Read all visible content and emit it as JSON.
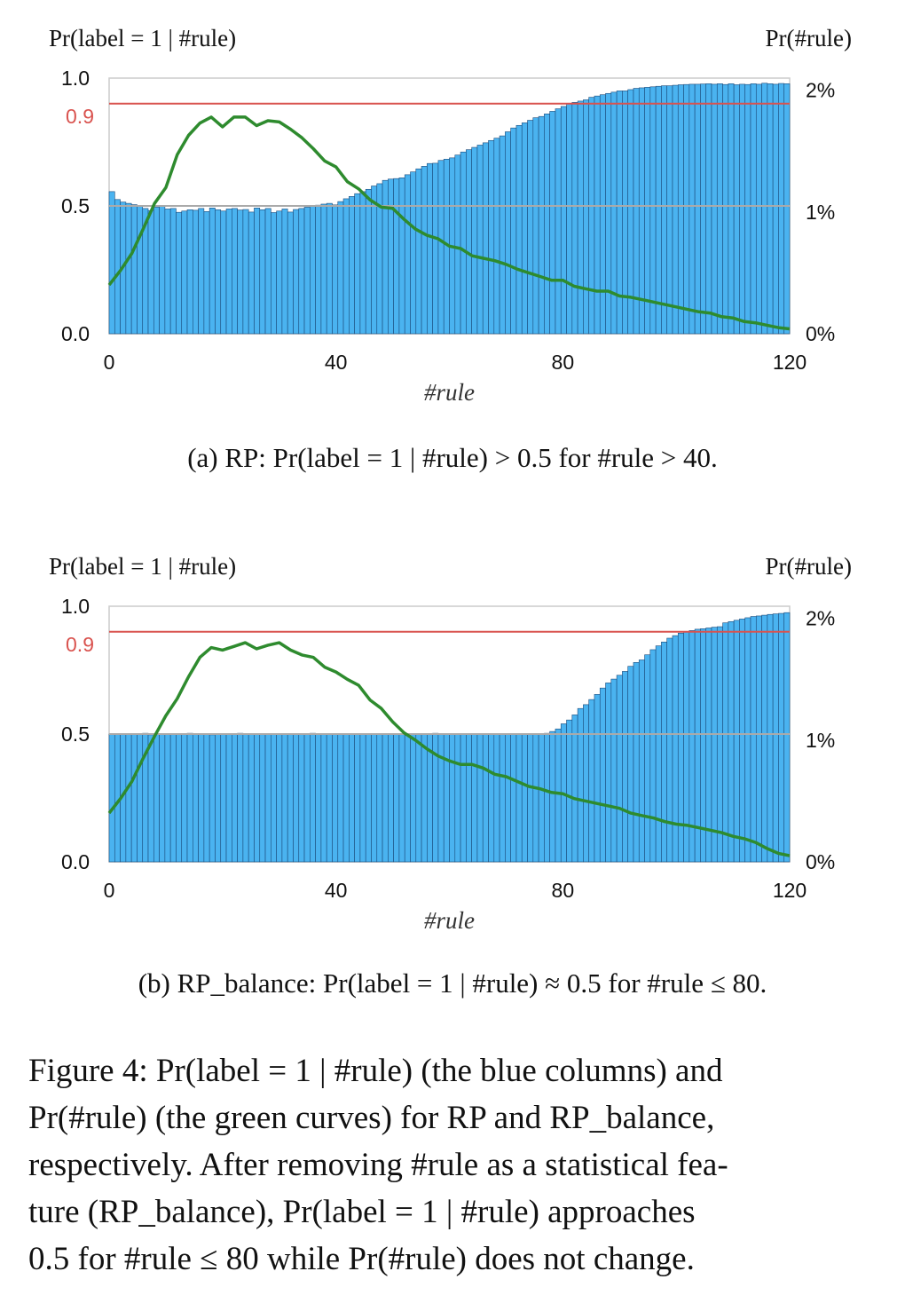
{
  "chart_data": [
    {
      "type": "bar",
      "panel": "a",
      "left_axis_label": "Pr(label = 1 | #rule)",
      "right_axis_label": "Pr(#rule)",
      "xlabel": "#rule",
      "xlim": [
        0,
        120
      ],
      "x_ticks": [
        "0",
        "40",
        "80",
        "120"
      ],
      "y_left_ticks": [
        "0.0",
        "0.5",
        "1.0"
      ],
      "y_left_ref_tick": "0.9",
      "y_right_ticks": [
        "0%",
        "1%",
        "2%"
      ],
      "ylim_left": [
        0,
        1.0
      ],
      "ylim_right": [
        0,
        2.1
      ],
      "reference_lines": [
        {
          "y": 0.9,
          "color": "#d9534f"
        },
        {
          "y": 0.5,
          "color": "#aaaaaa"
        }
      ],
      "bar_color": "#4ab3f0",
      "line_color": "#2e8b2e",
      "bars_label": "Pr(label = 1 | #rule)",
      "curve_label": "Pr(#rule)",
      "bar_values": [
        0.556,
        0.525,
        0.515,
        0.51,
        0.505,
        0.5,
        0.49,
        0.482,
        0.495,
        0.498,
        0.488,
        0.49,
        0.475,
        0.48,
        0.485,
        0.483,
        0.49,
        0.478,
        0.492,
        0.485,
        0.48,
        0.488,
        0.49,
        0.484,
        0.486,
        0.476,
        0.492,
        0.485,
        0.49,
        0.474,
        0.48,
        0.488,
        0.476,
        0.486,
        0.49,
        0.495,
        0.5,
        0.503,
        0.507,
        0.51,
        0.504,
        0.517,
        0.528,
        0.537,
        0.548,
        0.556,
        0.565,
        0.578,
        0.587,
        0.6,
        0.605,
        0.607,
        0.61,
        0.622,
        0.633,
        0.645,
        0.655,
        0.666,
        0.667,
        0.678,
        0.683,
        0.688,
        0.699,
        0.711,
        0.72,
        0.729,
        0.738,
        0.747,
        0.756,
        0.765,
        0.774,
        0.79,
        0.805,
        0.815,
        0.825,
        0.835,
        0.845,
        0.85,
        0.86,
        0.87,
        0.88,
        0.889,
        0.9,
        0.905,
        0.91,
        0.915,
        0.925,
        0.93,
        0.935,
        0.94,
        0.945,
        0.95,
        0.95,
        0.955,
        0.96,
        0.962,
        0.964,
        0.966,
        0.968,
        0.97,
        0.97,
        0.972,
        0.974,
        0.975,
        0.976,
        0.976,
        0.977,
        0.978,
        0.976,
        0.978,
        0.975,
        0.978,
        0.974,
        0.976,
        0.975,
        0.978,
        0.976,
        0.98,
        0.978,
        0.976,
        0.979,
        0.978
      ],
      "curve_x": [
        0,
        2,
        4,
        6,
        8,
        10,
        12,
        14,
        16,
        18,
        20,
        22,
        24,
        26,
        28,
        30,
        32,
        34,
        36,
        38,
        40,
        42,
        44,
        46,
        48,
        50,
        52,
        54,
        56,
        58,
        60,
        62,
        64,
        66,
        68,
        70,
        72,
        74,
        76,
        78,
        80,
        82,
        84,
        86,
        88,
        90,
        92,
        94,
        96,
        98,
        100,
        102,
        104,
        106,
        108,
        110,
        112,
        114,
        116,
        118,
        120
      ],
      "curve_values": [
        0.4,
        0.52,
        0.66,
        0.86,
        1.07,
        1.2,
        1.47,
        1.63,
        1.73,
        1.78,
        1.7,
        1.78,
        1.78,
        1.71,
        1.75,
        1.74,
        1.68,
        1.61,
        1.52,
        1.42,
        1.37,
        1.25,
        1.19,
        1.1,
        1.04,
        1.03,
        0.94,
        0.86,
        0.81,
        0.78,
        0.72,
        0.7,
        0.64,
        0.62,
        0.6,
        0.57,
        0.53,
        0.5,
        0.47,
        0.44,
        0.44,
        0.39,
        0.37,
        0.35,
        0.35,
        0.31,
        0.3,
        0.28,
        0.26,
        0.24,
        0.22,
        0.2,
        0.18,
        0.17,
        0.14,
        0.13,
        0.1,
        0.09,
        0.07,
        0.05,
        0.04
      ],
      "caption": "(a) RP: Pr(label = 1 | #rule) > 0.5 for #rule > 40."
    },
    {
      "type": "bar",
      "panel": "b",
      "left_axis_label": "Pr(label = 1 | #rule)",
      "right_axis_label": "Pr(#rule)",
      "xlabel": "#rule",
      "xlim": [
        0,
        120
      ],
      "x_ticks": [
        "0",
        "40",
        "80",
        "120"
      ],
      "y_left_ticks": [
        "0.0",
        "0.5",
        "1.0"
      ],
      "y_left_ref_tick": "0.9",
      "y_right_ticks": [
        "0%",
        "1%",
        "2%"
      ],
      "ylim_left": [
        0,
        1.0
      ],
      "ylim_right": [
        0,
        2.1
      ],
      "reference_lines": [
        {
          "y": 0.9,
          "color": "#d9534f"
        },
        {
          "y": 0.5,
          "color": "#aaaaaa"
        }
      ],
      "bar_color": "#4ab3f0",
      "line_color": "#2e8b2e",
      "bars_label": "Pr(label = 1 | #rule)",
      "curve_label": "Pr(#rule)",
      "bar_values": [
        0.5,
        0.502,
        0.498,
        0.501,
        0.499,
        0.5,
        0.503,
        0.497,
        0.5,
        0.502,
        0.499,
        0.501,
        0.498,
        0.5,
        0.503,
        0.499,
        0.501,
        0.5,
        0.497,
        0.502,
        0.5,
        0.499,
        0.501,
        0.503,
        0.498,
        0.5,
        0.502,
        0.499,
        0.501,
        0.5,
        0.498,
        0.502,
        0.5,
        0.499,
        0.501,
        0.5,
        0.503,
        0.498,
        0.5,
        0.501,
        0.499,
        0.502,
        0.5,
        0.498,
        0.501,
        0.5,
        0.499,
        0.502,
        0.5,
        0.501,
        0.498,
        0.5,
        0.502,
        0.499,
        0.5,
        0.501,
        0.498,
        0.5,
        0.503,
        0.5,
        0.499,
        0.501,
        0.5,
        0.498,
        0.502,
        0.5,
        0.499,
        0.501,
        0.5,
        0.498,
        0.502,
        0.5,
        0.499,
        0.501,
        0.5,
        0.498,
        0.502,
        0.5,
        0.503,
        0.51,
        0.52,
        0.54,
        0.555,
        0.575,
        0.6,
        0.615,
        0.635,
        0.655,
        0.68,
        0.7,
        0.715,
        0.73,
        0.745,
        0.765,
        0.78,
        0.79,
        0.81,
        0.83,
        0.845,
        0.86,
        0.875,
        0.885,
        0.895,
        0.9,
        0.905,
        0.91,
        0.912,
        0.915,
        0.918,
        0.92,
        0.935,
        0.94,
        0.945,
        0.95,
        0.955,
        0.96,
        0.962,
        0.965,
        0.968,
        0.97,
        0.972,
        0.975
      ],
      "curve_x": [
        0,
        2,
        4,
        6,
        8,
        10,
        12,
        14,
        16,
        18,
        20,
        22,
        24,
        26,
        28,
        30,
        32,
        34,
        36,
        38,
        40,
        42,
        44,
        46,
        48,
        50,
        52,
        54,
        56,
        58,
        60,
        62,
        64,
        66,
        68,
        70,
        72,
        74,
        76,
        78,
        80,
        82,
        84,
        86,
        88,
        90,
        92,
        94,
        96,
        98,
        100,
        102,
        104,
        106,
        108,
        110,
        112,
        114,
        116,
        118,
        120
      ],
      "curve_values": [
        0.4,
        0.52,
        0.66,
        0.85,
        1.03,
        1.2,
        1.34,
        1.52,
        1.68,
        1.76,
        1.74,
        1.77,
        1.8,
        1.75,
        1.78,
        1.8,
        1.74,
        1.7,
        1.68,
        1.6,
        1.56,
        1.5,
        1.45,
        1.33,
        1.26,
        1.15,
        1.06,
        1.0,
        0.93,
        0.87,
        0.83,
        0.8,
        0.8,
        0.77,
        0.72,
        0.7,
        0.66,
        0.62,
        0.6,
        0.57,
        0.56,
        0.52,
        0.5,
        0.48,
        0.46,
        0.44,
        0.4,
        0.38,
        0.36,
        0.33,
        0.31,
        0.3,
        0.28,
        0.26,
        0.24,
        0.21,
        0.19,
        0.16,
        0.11,
        0.07,
        0.05
      ],
      "caption": "(b) RP_balance: Pr(label = 1 | #rule) ≈ 0.5 for #rule ≤ 80."
    }
  ],
  "figure_caption": {
    "line1": "Figure 4: Pr(label = 1 | #rule) (the blue columns) and",
    "line2": "Pr(#rule) (the green curves) for RP and RP_balance,",
    "line3": "respectively. After removing #rule as a statistical fea-",
    "line4": "ture (RP_balance), Pr(label = 1 | #rule) approaches",
    "line5": "0.5 for #rule ≤ 80 while Pr(#rule) does not change."
  }
}
